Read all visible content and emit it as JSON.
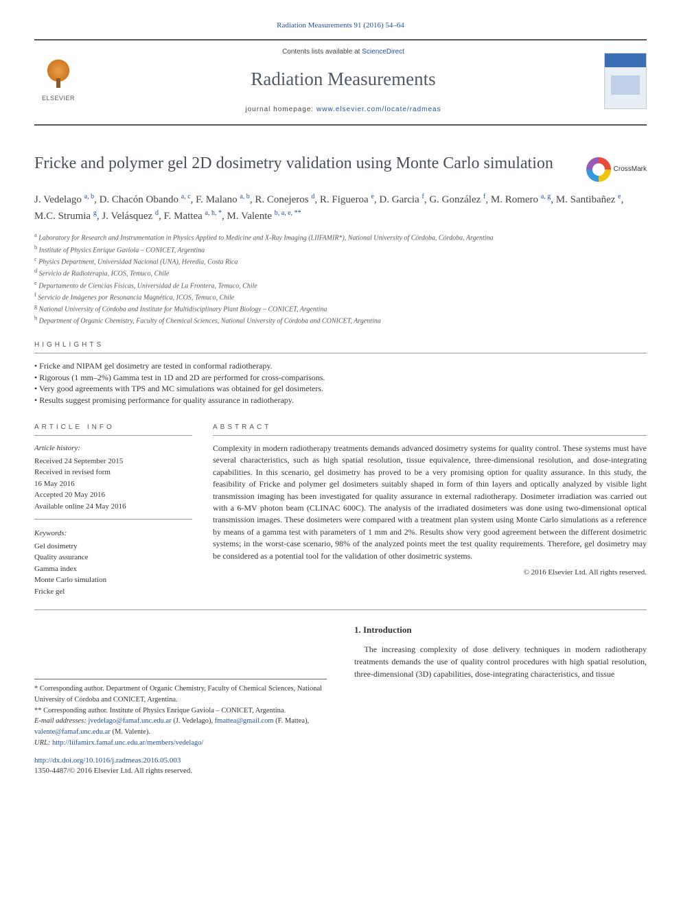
{
  "citation": "Radiation Measurements 91 (2016) 54–64",
  "header": {
    "contents_prefix": "Contents lists available at ",
    "contents_link": "ScienceDirect",
    "journal_name": "Radiation Measurements",
    "homepage_prefix": "journal homepage: ",
    "homepage_url": "www.elsevier.com/locate/radmeas",
    "elsevier_label": "ELSEVIER"
  },
  "crossmark_label": "CrossMark",
  "title": "Fricke and polymer gel 2D dosimetry validation using Monte Carlo simulation",
  "authors_html": "J. Vedelago <sup><a>a, b</a></sup>, D. Chacón Obando <sup><a>a, c</a></sup>, F. Malano <sup><a>a, b</a></sup>, R. Conejeros <sup><a>d</a></sup>, R. Figueroa <sup><a>e</a></sup>, D. Garcia <sup><a>f</a></sup>, G. González <sup><a>f</a></sup>, M. Romero <sup><a>a, g</a></sup>, M. Santibañez <sup><a>e</a></sup>, M.C. Strumia <sup><a>g</a></sup>, J. Velásquez <sup><a>d</a></sup>, F. Mattea <sup><a>a, h, *</a></sup>, M. Valente <sup><a>b, a, e, **</a></sup>",
  "affiliations": [
    {
      "sup": "a",
      "text": "Laboratory for Research and Instrumentation in Physics Applied to Medicine and X-Ray Imaging (LIIFAMIR*), National University of Córdoba, Córdoba, Argentina"
    },
    {
      "sup": "b",
      "text": "Institute of Physics Enrique Gaviola – CONICET, Argentina"
    },
    {
      "sup": "c",
      "text": "Physics Department, Universidad Nacional (UNA), Heredia, Costa Rica"
    },
    {
      "sup": "d",
      "text": "Servicio de Radioterapia, ICOS, Temuco, Chile"
    },
    {
      "sup": "e",
      "text": "Departamento de Ciencias Físicas, Universidad de La Frontera, Temuco, Chile"
    },
    {
      "sup": "f",
      "text": "Servicio de Imágenes por Resonancia Magnética, ICOS, Temuco, Chile"
    },
    {
      "sup": "g",
      "text": "National University of Córdoba and Institute for Multidisciplinary Plant Biology – CONICET, Argentina"
    },
    {
      "sup": "h",
      "text": "Department of Organic Chemistry, Faculty of Chemical Sciences, National University of Córdoba and CONICET, Argentina"
    }
  ],
  "highlights": {
    "heading": "highlights",
    "items": [
      "Fricke and NIPAM gel dosimetry are tested in conformal radiotherapy.",
      "Rigorous (1 mm–2%) Gamma test in 1D and 2D are performed for cross-comparisons.",
      "Very good agreements with TPS and MC simulations was obtained for gel dosimeters.",
      "Results suggest promising performance for quality assurance in radiotherapy."
    ]
  },
  "article_info": {
    "heading": "article info",
    "history_label": "Article history:",
    "history": [
      "Received 24 September 2015",
      "Received in revised form",
      "16 May 2016",
      "Accepted 20 May 2016",
      "Available online 24 May 2016"
    ],
    "keywords_label": "Keywords:",
    "keywords": [
      "Gel dosimetry",
      "Quality assurance",
      "Gamma index",
      "Monte Carlo simulation",
      "Fricke gel"
    ]
  },
  "abstract": {
    "heading": "abstract",
    "text": "Complexity in modern radiotherapy treatments demands advanced dosimetry systems for quality control. These systems must have several characteristics, such as high spatial resolution, tissue equivalence, three-dimensional resolution, and dose-integrating capabilities. In this scenario, gel dosimetry has proved to be a very promising option for quality assurance. In this study, the feasibility of Fricke and polymer gel dosimeters suitably shaped in form of thin layers and optically analyzed by visible light transmission imaging has been investigated for quality assurance in external radiotherapy. Dosimeter irradiation was carried out with a 6-MV photon beam (CLINAC 600C). The analysis of the irradiated dosimeters was done using two-dimensional optical transmission images. These dosimeters were compared with a treatment plan system using Monte Carlo simulations as a reference by means of a gamma test with parameters of 1 mm and 2%. Results show very good agreement between the different dosimetric systems; in the worst-case scenario, 98% of the analyzed points meet the test quality requirements. Therefore, gel dosimetry may be considered as a potential tool for the validation of other dosimetric systems.",
    "copyright": "© 2016 Elsevier Ltd. All rights reserved."
  },
  "footnotes": {
    "corr1": "* Corresponding author. Department of Organic Chemistry, Faculty of Chemical Sciences, National University of Córdoba and CONICET, Argentina.",
    "corr2": "** Corresponding author. Institute of Physics Enrique Gaviola – CONICET, Argentina.",
    "email_label": "E-mail addresses: ",
    "emails_html": "<a>jvedelago@famaf.unc.edu.ar</a> (J. Vedelago), <a>fmattea@gmail.com</a> (F. Mattea), <a>valente@famaf.unc.edu.ar</a> (M. Valente).",
    "url_label": "URL: ",
    "url": "http://liifamirx.famaf.unc.edu.ar/members/vedelago/"
  },
  "intro": {
    "heading": "1. Introduction",
    "text": "The increasing complexity of dose delivery techniques in modern radiotherapy treatments demands the use of quality control procedures with high spatial resolution, three-dimensional (3D) capabilities, dose-integrating characteristics, and tissue"
  },
  "doi": {
    "link": "http://dx.doi.org/10.1016/j.radmeas.2016.05.003",
    "issn_line": "1350-4487/© 2016 Elsevier Ltd. All rights reserved."
  }
}
